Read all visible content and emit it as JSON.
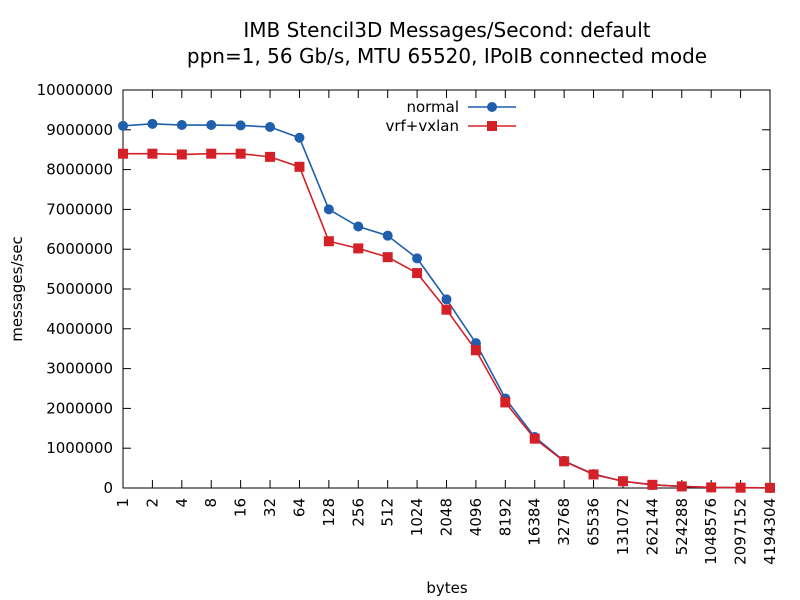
{
  "chart_data": {
    "type": "line",
    "title": "IMB Stencil3D Messages/Second: default",
    "subtitle": "ppn=1, 56 Gb/s, MTU 65520, IPoIB connected mode",
    "xlabel": "bytes",
    "ylabel": "messages/sec",
    "ylim": [
      0,
      10000000
    ],
    "yticks": [
      "0",
      "1000000",
      "2000000",
      "3000000",
      "4000000",
      "5000000",
      "6000000",
      "7000000",
      "8000000",
      "9000000",
      "10000000"
    ],
    "categories": [
      "1",
      "2",
      "4",
      "8",
      "16",
      "32",
      "64",
      "128",
      "256",
      "512",
      "1024",
      "2048",
      "4096",
      "8192",
      "16384",
      "32768",
      "65536",
      "131072",
      "262144",
      "524288",
      "1048576",
      "2097152",
      "4194304"
    ],
    "legend_position": "top-center",
    "grid": false,
    "series": [
      {
        "name": "normal",
        "color": "#1f5fae",
        "marker": "circle",
        "values": [
          9100000,
          9150000,
          9120000,
          9120000,
          9110000,
          9070000,
          8800000,
          7000000,
          6570000,
          6340000,
          5770000,
          4740000,
          3640000,
          2250000,
          1280000,
          680000,
          350000,
          170000,
          80000,
          40000,
          15000,
          8000,
          4000
        ]
      },
      {
        "name": "vrf+vxlan",
        "color": "#d42027",
        "marker": "square",
        "values": [
          8400000,
          8400000,
          8380000,
          8400000,
          8400000,
          8320000,
          8070000,
          6200000,
          6020000,
          5800000,
          5400000,
          4480000,
          3460000,
          2150000,
          1240000,
          670000,
          340000,
          170000,
          80000,
          40000,
          15000,
          8000,
          4000
        ]
      }
    ]
  }
}
